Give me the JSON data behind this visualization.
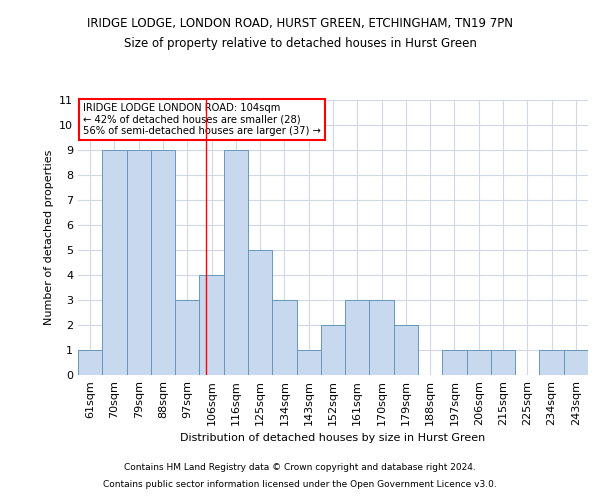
{
  "title1": "IRIDGE LODGE, LONDON ROAD, HURST GREEN, ETCHINGHAM, TN19 7PN",
  "title2": "Size of property relative to detached houses in Hurst Green",
  "xlabel": "Distribution of detached houses by size in Hurst Green",
  "ylabel": "Number of detached properties",
  "categories": [
    "61sqm",
    "70sqm",
    "79sqm",
    "88sqm",
    "97sqm",
    "106sqm",
    "116sqm",
    "125sqm",
    "134sqm",
    "143sqm",
    "152sqm",
    "161sqm",
    "170sqm",
    "179sqm",
    "188sqm",
    "197sqm",
    "206sqm",
    "215sqm",
    "225sqm",
    "234sqm",
    "243sqm"
  ],
  "values": [
    1,
    9,
    9,
    9,
    3,
    4,
    9,
    5,
    3,
    1,
    2,
    3,
    3,
    2,
    0,
    1,
    1,
    1,
    0,
    1,
    1
  ],
  "bar_color": "#c8d8ee",
  "bar_edge_color": "#6699bb",
  "marker_label": "IRIDGE LODGE LONDON ROAD: 104sqm",
  "annotation_line1": "← 42% of detached houses are smaller (28)",
  "annotation_line2": "56% of semi-detached houses are larger (37) →",
  "ylim": [
    0,
    11
  ],
  "yticks": [
    0,
    1,
    2,
    3,
    4,
    5,
    6,
    7,
    8,
    9,
    10,
    11
  ],
  "footer1": "Contains HM Land Registry data © Crown copyright and database right 2024.",
  "footer2": "Contains public sector information licensed under the Open Government Licence v3.0.",
  "background_color": "#ffffff",
  "plot_bg_color": "#ffffff",
  "grid_color": "#d0d8e8",
  "title1_fontsize": 8.5,
  "title2_fontsize": 8.5
}
